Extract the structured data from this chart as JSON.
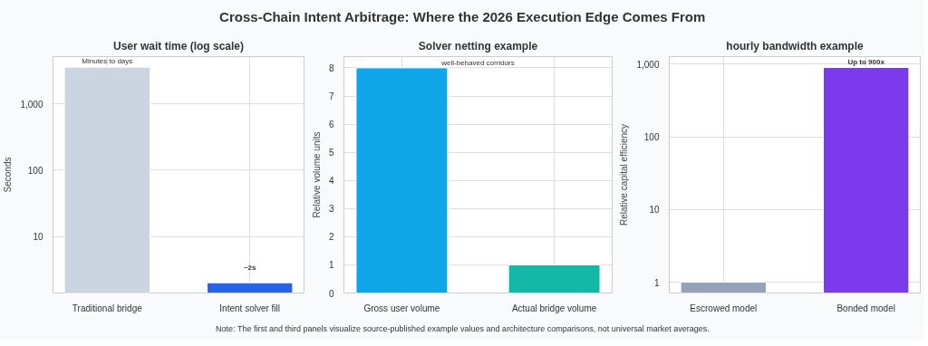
{
  "chart_data": [
    {
      "type": "other",
      "title": "Cross-Chain Intent Arbitrage: Where the 2026 Execution Edge Comes From"
    },
    {
      "type": "bar",
      "title": "User wait time (log scale)",
      "ylabel": "Seconds",
      "categories": [
        "Traditional bridge",
        "Intent solver fill"
      ],
      "values": [
        3600,
        2
      ],
      "colors": [
        "#cbd5e1",
        "#2563eb"
      ],
      "log": true,
      "ylim": [
        1.4,
        5200
      ],
      "yticks": [
        10,
        100,
        {
          "value": 1000,
          "label": "1,000"
        }
      ],
      "grid": true,
      "annotations": [
        {
          "text": "Minutes to days",
          "x": "Traditional bridge",
          "y": 3600
        },
        {
          "text": "~2s",
          "x": "Intent solver fill",
          "y": 2
        }
      ]
    },
    {
      "type": "bar",
      "title": "Solver netting example",
      "ylabel": "Relative volume units",
      "categories": [
        "Gross user volume",
        "Actual bridge volume"
      ],
      "values": [
        8,
        1
      ],
      "colors": [
        "#0ea5e9",
        "#14b8a6"
      ],
      "ylim": [
        0,
        8.4
      ],
      "yticks": [
        0,
        1,
        2,
        3,
        4,
        5,
        6,
        7,
        8
      ],
      "grid": true,
      "annotations": [
        "well-behaved corridors"
      ]
    },
    {
      "type": "bar",
      "title": "hourly bandwidth example",
      "ylabel": "Relative capital efficiency",
      "categories": [
        "Escrowed model",
        "Bonded model"
      ],
      "values": [
        1,
        900
      ],
      "colors": [
        "#94a3b8",
        "#7c3aed"
      ],
      "log": true,
      "ylim": [
        0.71,
        1270
      ],
      "yticks": [
        1,
        10,
        100,
        {
          "value": 1000,
          "label": "1,000"
        }
      ],
      "grid": true,
      "annotations": [
        {
          "text": "Up to 900x",
          "x": "Bonded model",
          "y": 900
        }
      ]
    },
    {
      "type": "other",
      "annotations": [
        "Note: The first and third panels visualize source-published example values and architecture comparisons, not universal market averages."
      ]
    }
  ]
}
